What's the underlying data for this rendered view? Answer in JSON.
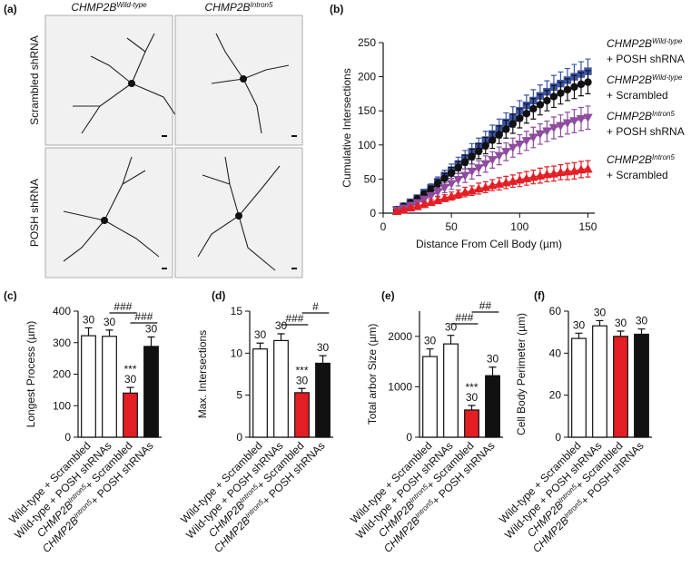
{
  "panel_a": {
    "label": "(a)",
    "columns": [
      {
        "gene": "CHMP2B",
        "allele": "Wild-type"
      },
      {
        "gene": "CHMP2B",
        "allele": "Intron5"
      }
    ],
    "rows": [
      "Scrambled shRNA",
      "POSH shRNA"
    ]
  },
  "chart_data": [
    {
      "type": "line",
      "label": "(b)",
      "x_label": "Distance From Cell Body (µm)",
      "y_label": "Cumulative Intersections",
      "x": [
        10,
        15,
        20,
        25,
        30,
        35,
        40,
        45,
        50,
        55,
        60,
        65,
        70,
        75,
        80,
        85,
        90,
        95,
        100,
        105,
        110,
        115,
        120,
        125,
        130,
        135,
        140,
        145,
        150
      ],
      "xlim": [
        0,
        155
      ],
      "xticks": [
        0,
        50,
        100,
        150
      ],
      "ylim": [
        0,
        250
      ],
      "yticks": [
        0,
        50,
        100,
        150,
        200,
        250
      ],
      "series": [
        {
          "name": {
            "gene": "CHMP2B",
            "allele": "Wild-type",
            "treatment": "+ POSH shRNA"
          },
          "color": "#3b54a5",
          "marker": "square",
          "values": [
            5,
            10,
            16,
            22,
            30,
            37,
            46,
            55,
            63,
            72,
            81,
            90,
            98,
            107,
            116,
            124,
            133,
            141,
            150,
            158,
            165,
            172,
            178,
            185,
            190,
            195,
            200,
            204,
            208
          ],
          "errors": [
            1,
            2,
            3,
            4,
            5,
            6,
            7,
            8,
            9,
            10,
            11,
            12,
            12,
            13,
            13,
            14,
            14,
            15,
            15,
            15,
            16,
            16,
            16,
            17,
            17,
            17,
            18,
            18,
            18
          ]
        },
        {
          "name": {
            "gene": "CHMP2B",
            "allele": "Wild-type",
            "treatment": "+ Scrambled"
          },
          "color": "#111111",
          "marker": "circle",
          "values": [
            5,
            10,
            15,
            21,
            28,
            35,
            43,
            51,
            59,
            67,
            75,
            83,
            91,
            99,
            107,
            115,
            123,
            131,
            139,
            146,
            153,
            159,
            165,
            171,
            176,
            181,
            185,
            189,
            192
          ],
          "errors": [
            1,
            2,
            3,
            3,
            4,
            5,
            6,
            7,
            8,
            9,
            10,
            11,
            11,
            12,
            12,
            13,
            13,
            14,
            14,
            14,
            15,
            15,
            15,
            16,
            16,
            16,
            17,
            17,
            17
          ]
        },
        {
          "name": {
            "gene": "CHMP2B",
            "allele": "Intron5",
            "treatment": "+ POSH shRNA"
          },
          "color": "#8e4c9e",
          "marker": "triangle-down",
          "values": [
            4,
            7,
            11,
            15,
            20,
            25,
            31,
            37,
            43,
            49,
            55,
            61,
            66,
            72,
            78,
            84,
            90,
            96,
            101,
            106,
            111,
            116,
            120,
            125,
            128,
            132,
            135,
            138,
            140
          ],
          "errors": [
            1,
            2,
            3,
            3,
            4,
            5,
            6,
            7,
            8,
            9,
            10,
            11,
            11,
            12,
            12,
            13,
            13,
            14,
            14,
            14,
            15,
            15,
            15,
            16,
            16,
            16,
            17,
            17,
            17
          ]
        },
        {
          "name": {
            "gene": "CHMP2B",
            "allele": "Intron5",
            "treatment": "+ Scrambled"
          },
          "color": "#e31e24",
          "marker": "triangle-up",
          "values": [
            3,
            5,
            8,
            10,
            13,
            16,
            19,
            22,
            25,
            28,
            31,
            33,
            36,
            38,
            41,
            43,
            45,
            47,
            49,
            51,
            53,
            55,
            57,
            58,
            60,
            61,
            62,
            64,
            65
          ],
          "errors": [
            1,
            1,
            2,
            3,
            4,
            4,
            5,
            5,
            6,
            6,
            7,
            7,
            8,
            8,
            8,
            9,
            9,
            9,
            10,
            10,
            10,
            11,
            11,
            11,
            11,
            12,
            12,
            12,
            12
          ]
        }
      ]
    },
    {
      "type": "bar",
      "label": "(c)",
      "y_label": "Longest Process (µm)",
      "categories": [
        [
          "Wild-type + Scrambled"
        ],
        [
          "Wild-type + POSH shRNAs"
        ],
        [
          "CHMP2B",
          "Intron5",
          "+ Scrambled"
        ],
        [
          "CHMP2B",
          "Intron5",
          "+ POSH shRNAs"
        ]
      ],
      "values": [
        322,
        320,
        140,
        288
      ],
      "errors": [
        25,
        20,
        18,
        30
      ],
      "colors": [
        "#ffffff",
        "#ffffff",
        "#e31e24",
        "#111111"
      ],
      "ylim": [
        0,
        400
      ],
      "yticks": [
        0,
        100,
        200,
        300,
        400
      ],
      "n_labels": [
        "30",
        "30",
        "30",
        "30"
      ],
      "significance": [
        null,
        null,
        "***",
        null
      ],
      "brackets": [
        "###",
        "###"
      ]
    },
    {
      "type": "bar",
      "label": "(d)",
      "y_label": "Max. Intersections",
      "categories": [
        [
          "Wild-type + Scrambled"
        ],
        [
          "Wild-type + POSH shRNAs"
        ],
        [
          "CHMP2B",
          "Intron5",
          "+ Scrambled"
        ],
        [
          "CHMP2B",
          "Intron5",
          "+ POSH shRNAs"
        ]
      ],
      "values": [
        10.5,
        11.5,
        5.3,
        8.8
      ],
      "errors": [
        0.7,
        0.8,
        0.5,
        0.9
      ],
      "colors": [
        "#ffffff",
        "#ffffff",
        "#e31e24",
        "#111111"
      ],
      "ylim": [
        0,
        15
      ],
      "yticks": [
        0,
        5,
        10,
        15
      ],
      "n_labels": [
        "30",
        "30",
        "30",
        "30"
      ],
      "significance": [
        null,
        null,
        "***",
        null
      ],
      "brackets": [
        "###",
        "#"
      ]
    },
    {
      "type": "bar",
      "label": "(e)",
      "y_label": "Total arbor Size (µm)",
      "categories": [
        [
          "Wild-type + Scrambled"
        ],
        [
          "Wild-type + POSH shRNAs"
        ],
        [
          "CHMP2B",
          "Intron5",
          "+ Scrambled"
        ],
        [
          "CHMP2B",
          "Intron5",
          "+ POSH shRNAs"
        ]
      ],
      "values": [
        1600,
        1850,
        540,
        1220
      ],
      "errors": [
        150,
        170,
        90,
        170
      ],
      "colors": [
        "#ffffff",
        "#ffffff",
        "#e31e24",
        "#111111"
      ],
      "ylim": [
        0,
        2500
      ],
      "yticks": [
        0,
        1000,
        2000
      ],
      "n_labels": [
        "30",
        "30",
        "30",
        "30"
      ],
      "significance": [
        null,
        null,
        "***",
        null
      ],
      "brackets": [
        "###",
        "##"
      ]
    },
    {
      "type": "bar",
      "label": "(f)",
      "y_label": "Cell Body Perimeter (µm)",
      "categories": [
        [
          "Wild-type + Scrambled"
        ],
        [
          "Wild-type + POSH shRNAs"
        ],
        [
          "CHMP2B",
          "Intron5",
          "+ Scrambled"
        ],
        [
          "CHMP2B",
          "Intron5",
          "+ POSH shRNAs"
        ]
      ],
      "values": [
        47,
        53,
        48,
        49
      ],
      "errors": [
        2.5,
        2.5,
        2.5,
        2.5
      ],
      "colors": [
        "#ffffff",
        "#ffffff",
        "#e31e24",
        "#111111"
      ],
      "ylim": [
        0,
        60
      ],
      "yticks": [
        0,
        20,
        40,
        60
      ],
      "n_labels": [
        "30",
        "30",
        "30",
        "30"
      ],
      "significance": [
        null,
        null,
        null,
        null
      ],
      "brackets": []
    }
  ]
}
